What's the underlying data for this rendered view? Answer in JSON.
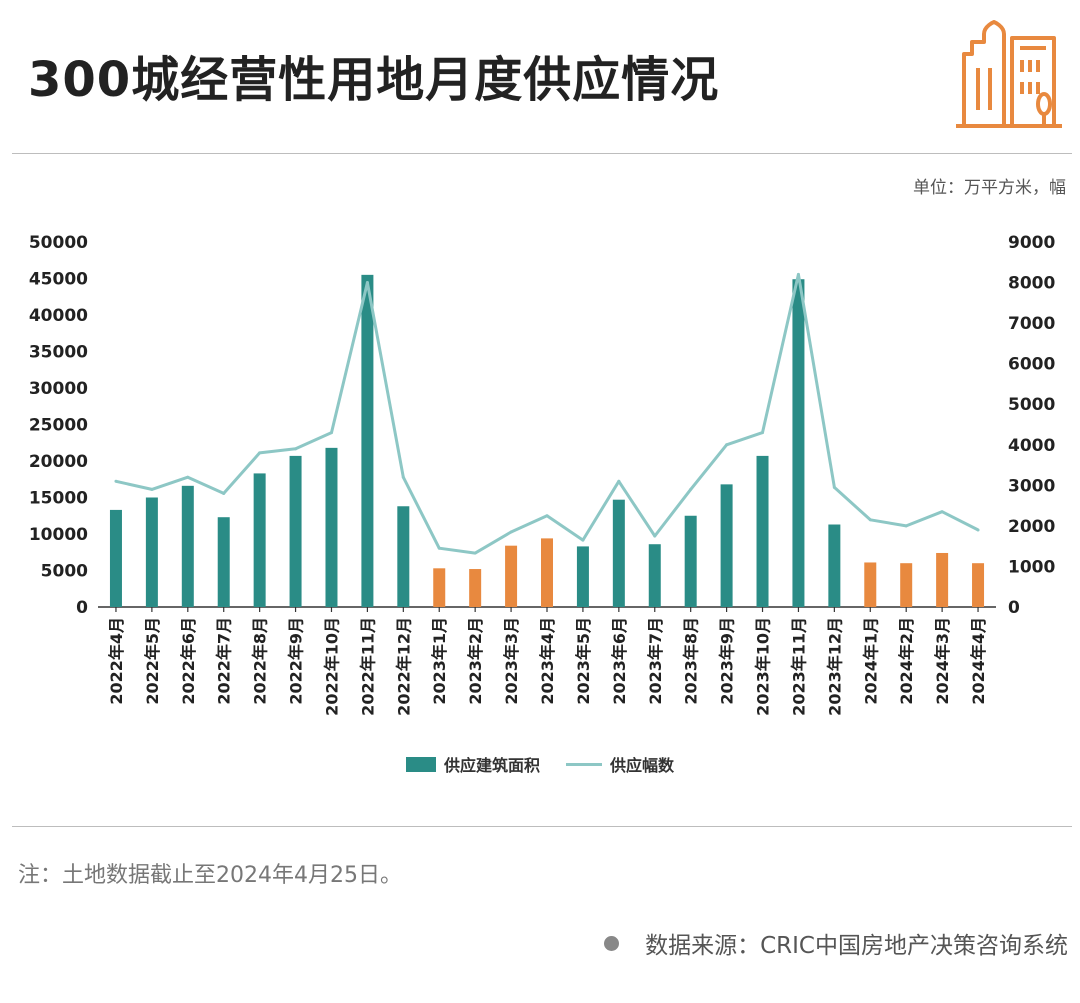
{
  "header": {
    "title": "300城经营性用地月度供应情况",
    "unit": "单位：万平方米，幅"
  },
  "footer": {
    "note": "注：土地数据截止至2024年4月25日。",
    "source": "数据来源：CRIC中国房地产决策咨询系统"
  },
  "colors": {
    "bar_primary": "#2a8c86",
    "bar_highlight": "#e8893f",
    "line": "#8dc7c5",
    "logo": "#e8893f"
  },
  "logo_icon": "city-buildings-icon",
  "chart_data": {
    "type": "bar",
    "categories": [
      "2022年4月",
      "2022年5月",
      "2022年6月",
      "2022年7月",
      "2022年8月",
      "2022年9月",
      "2022年10月",
      "2022年11月",
      "2022年12月",
      "2023年1月",
      "2023年2月",
      "2023年3月",
      "2023年4月",
      "2023年5月",
      "2023年6月",
      "2023年7月",
      "2023年8月",
      "2023年9月",
      "2023年10月",
      "2023年11月",
      "2023年12月",
      "2024年1月",
      "2024年2月",
      "2024年3月",
      "2024年4月"
    ],
    "series": [
      {
        "name": "供应建筑面积",
        "type": "bar",
        "axis": "left",
        "values": [
          13300,
          15000,
          16600,
          12300,
          18300,
          20700,
          21800,
          45500,
          13800,
          5300,
          5200,
          8400,
          9400,
          8300,
          14700,
          8600,
          12500,
          16800,
          20700,
          44900,
          11300,
          6100,
          6000,
          7400,
          6000
        ],
        "highlight": [
          false,
          false,
          false,
          false,
          false,
          false,
          false,
          false,
          false,
          true,
          true,
          true,
          true,
          false,
          false,
          false,
          false,
          false,
          false,
          false,
          false,
          true,
          true,
          true,
          true
        ]
      },
      {
        "name": "供应幅数",
        "type": "line",
        "axis": "right",
        "values": [
          3100,
          2900,
          3200,
          2800,
          3800,
          3900,
          4300,
          8000,
          3200,
          1450,
          1330,
          1850,
          2250,
          1650,
          3100,
          1750,
          2900,
          4000,
          4300,
          8200,
          2950,
          2150,
          2000,
          2350,
          1900
        ]
      }
    ],
    "y_left": {
      "min": 0,
      "max": 50000,
      "ticks": [
        0,
        5000,
        10000,
        15000,
        20000,
        25000,
        30000,
        35000,
        40000,
        45000,
        50000
      ]
    },
    "y_right": {
      "min": 0,
      "max": 9000,
      "ticks": [
        0,
        1000,
        2000,
        3000,
        4000,
        5000,
        6000,
        7000,
        8000,
        9000
      ]
    },
    "grid": false,
    "legend_position": "bottom-center"
  }
}
